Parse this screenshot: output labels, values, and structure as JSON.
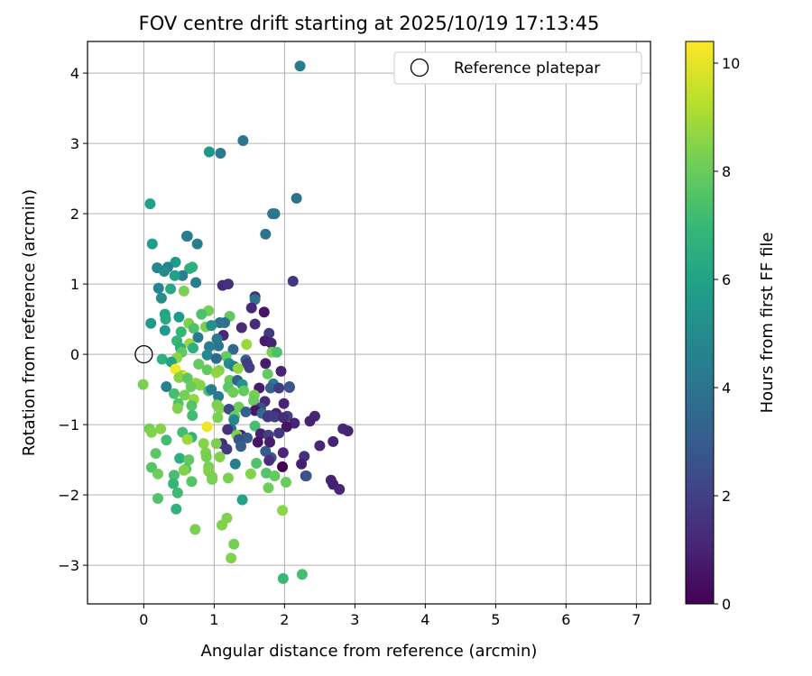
{
  "chart_data": {
    "type": "scatter",
    "title": "FOV centre drift starting at 2025/10/19 17:13:45",
    "xlabel": "Angular distance from reference (arcmin)",
    "ylabel": "Rotation from reference (arcmin)",
    "xlim": [
      -0.8,
      7.2
    ],
    "ylim": [
      -3.55,
      4.45
    ],
    "xticks": [
      0,
      1,
      2,
      3,
      4,
      5,
      6,
      7
    ],
    "yticks": [
      -3,
      -2,
      -1,
      0,
      1,
      2,
      3,
      4
    ],
    "grid": true,
    "legend": {
      "location": "top-right",
      "entries": [
        "Reference platepar"
      ]
    },
    "reference_point": {
      "x": 0,
      "y": 0
    },
    "colorbar": {
      "label": "Hours from first FF file",
      "min": 0,
      "max": 10.4,
      "ticks": [
        0,
        2,
        4,
        6,
        8,
        10
      ],
      "colormap": "viridis"
    },
    "points": [
      {
        "x": 2.22,
        "y": 4.1,
        "c": 4.3
      },
      {
        "x": 1.41,
        "y": 3.04,
        "c": 3.9
      },
      {
        "x": 0.93,
        "y": 2.88,
        "c": 5.5
      },
      {
        "x": 1.09,
        "y": 2.86,
        "c": 4.2
      },
      {
        "x": 2.17,
        "y": 2.22,
        "c": 4.0
      },
      {
        "x": 0.09,
        "y": 2.14,
        "c": 5.9
      },
      {
        "x": 1.83,
        "y": 2.0,
        "c": 4.1
      },
      {
        "x": 1.86,
        "y": 2.0,
        "c": 4.1
      },
      {
        "x": 1.73,
        "y": 1.71,
        "c": 4.0
      },
      {
        "x": 0.61,
        "y": 1.68,
        "c": 4.3
      },
      {
        "x": 0.62,
        "y": 1.68,
        "c": 4.3
      },
      {
        "x": 0.12,
        "y": 1.57,
        "c": 5.8
      },
      {
        "x": 0.76,
        "y": 1.57,
        "c": 4.5
      },
      {
        "x": 0.45,
        "y": 1.31,
        "c": 5.7
      },
      {
        "x": 0.34,
        "y": 1.24,
        "c": 4.6
      },
      {
        "x": 0.19,
        "y": 1.23,
        "c": 4.8
      },
      {
        "x": 0.69,
        "y": 1.24,
        "c": 6.7
      },
      {
        "x": 0.65,
        "y": 1.22,
        "c": 6.5
      },
      {
        "x": 0.29,
        "y": 1.18,
        "c": 5.0
      },
      {
        "x": 0.55,
        "y": 1.12,
        "c": 4.4
      },
      {
        "x": 0.44,
        "y": 1.12,
        "c": 5.9
      },
      {
        "x": 0.74,
        "y": 1.02,
        "c": 4.5
      },
      {
        "x": 2.12,
        "y": 1.04,
        "c": 1.6
      },
      {
        "x": 1.12,
        "y": 0.98,
        "c": 1.2
      },
      {
        "x": 1.2,
        "y": 1.0,
        "c": 1.5
      },
      {
        "x": 0.21,
        "y": 0.94,
        "c": 4.7
      },
      {
        "x": 0.38,
        "y": 0.93,
        "c": 6.2
      },
      {
        "x": 0.57,
        "y": 0.9,
        "c": 8.3
      },
      {
        "x": 1.58,
        "y": 0.82,
        "c": 1.4
      },
      {
        "x": 1.58,
        "y": 0.78,
        "c": 3.8
      },
      {
        "x": 0.25,
        "y": 0.8,
        "c": 5.1
      },
      {
        "x": 1.53,
        "y": 0.66,
        "c": 1.2
      },
      {
        "x": 1.71,
        "y": 0.6,
        "c": 0.6
      },
      {
        "x": 0.92,
        "y": 0.62,
        "c": 8.2
      },
      {
        "x": 0.82,
        "y": 0.57,
        "c": 7.4
      },
      {
        "x": 0.3,
        "y": 0.57,
        "c": 6.0
      },
      {
        "x": 0.5,
        "y": 0.53,
        "c": 5.7
      },
      {
        "x": 1.22,
        "y": 0.54,
        "c": 7.9
      },
      {
        "x": 0.31,
        "y": 0.5,
        "c": 6.3
      },
      {
        "x": 1.15,
        "y": 0.45,
        "c": 4.0
      },
      {
        "x": 1.08,
        "y": 0.45,
        "c": 3.9
      },
      {
        "x": 0.1,
        "y": 0.44,
        "c": 5.6
      },
      {
        "x": 0.64,
        "y": 0.44,
        "c": 8.4
      },
      {
        "x": 1.58,
        "y": 0.43,
        "c": 1.3
      },
      {
        "x": 1.39,
        "y": 0.38,
        "c": 1.3
      },
      {
        "x": 0.88,
        "y": 0.39,
        "c": 8.3
      },
      {
        "x": 0.96,
        "y": 0.41,
        "c": 5.2
      },
      {
        "x": 0.71,
        "y": 0.37,
        "c": 7.5
      },
      {
        "x": 0.3,
        "y": 0.34,
        "c": 5.6
      },
      {
        "x": 0.53,
        "y": 0.32,
        "c": 6.9
      },
      {
        "x": 1.78,
        "y": 0.3,
        "c": 1.7
      },
      {
        "x": 1.13,
        "y": 0.27,
        "c": 1.2
      },
      {
        "x": 0.77,
        "y": 0.24,
        "c": 4.3
      },
      {
        "x": 1.04,
        "y": 0.22,
        "c": 4.2
      },
      {
        "x": 1.72,
        "y": 0.19,
        "c": 0.8
      },
      {
        "x": 0.47,
        "y": 0.19,
        "c": 6.8
      },
      {
        "x": 1.81,
        "y": 0.16,
        "c": 1.0
      },
      {
        "x": 0.65,
        "y": 0.15,
        "c": 8.8
      },
      {
        "x": 1.46,
        "y": 0.14,
        "c": 8.8
      },
      {
        "x": 1.06,
        "y": 0.12,
        "c": 4.1
      },
      {
        "x": 0.93,
        "y": 0.11,
        "c": 4.4
      },
      {
        "x": 1.27,
        "y": 0.07,
        "c": 3.5
      },
      {
        "x": 0.52,
        "y": 0.09,
        "c": 6.5
      },
      {
        "x": 0.7,
        "y": 0.09,
        "c": 6.6
      },
      {
        "x": 1.82,
        "y": 0.03,
        "c": 8.3
      },
      {
        "x": 1.89,
        "y": 0.03,
        "c": 7.4
      },
      {
        "x": 0.54,
        "y": 0.03,
        "c": 7.8
      },
      {
        "x": 0.9,
        "y": -0.01,
        "c": 4.9
      },
      {
        "x": 1.17,
        "y": -0.03,
        "c": 7.9
      },
      {
        "x": 1.03,
        "y": -0.06,
        "c": 3.6
      },
      {
        "x": 0.47,
        "y": -0.05,
        "c": 8.6
      },
      {
        "x": 0.26,
        "y": -0.07,
        "c": 6.6
      },
      {
        "x": 1.45,
        "y": -0.08,
        "c": 3.1
      },
      {
        "x": 0.39,
        "y": -0.11,
        "c": 6.1
      },
      {
        "x": 1.47,
        "y": -0.13,
        "c": 1.8
      },
      {
        "x": 0.78,
        "y": -0.14,
        "c": 7.9
      },
      {
        "x": 1.73,
        "y": -0.13,
        "c": 0.8
      },
      {
        "x": 1.21,
        "y": -0.13,
        "c": 5.1
      },
      {
        "x": 1.28,
        "y": -0.17,
        "c": 4.5
      },
      {
        "x": 1.5,
        "y": -0.19,
        "c": 1.9
      },
      {
        "x": 0.45,
        "y": -0.21,
        "c": 10.3
      },
      {
        "x": 1.34,
        "y": -0.2,
        "c": 8.7
      },
      {
        "x": 0.9,
        "y": -0.22,
        "c": 7.9
      },
      {
        "x": 1.07,
        "y": -0.23,
        "c": 8.4
      },
      {
        "x": 1.95,
        "y": -0.24,
        "c": 1.0
      },
      {
        "x": 1.03,
        "y": -0.26,
        "c": 8.6
      },
      {
        "x": 1.76,
        "y": -0.28,
        "c": 7.9
      },
      {
        "x": 0.55,
        "y": -0.3,
        "c": 8.8
      },
      {
        "x": 0.59,
        "y": -0.32,
        "c": 10.1
      },
      {
        "x": 0.5,
        "y": -0.33,
        "c": 8.5
      },
      {
        "x": 0.62,
        "y": -0.34,
        "c": 7.7
      },
      {
        "x": 1.22,
        "y": -0.37,
        "c": 8.0
      },
      {
        "x": 1.33,
        "y": -0.37,
        "c": 3.2
      },
      {
        "x": 0.74,
        "y": -0.41,
        "c": 8.6
      },
      {
        "x": 1.84,
        "y": -0.42,
        "c": 4.3
      },
      {
        "x": 1.4,
        "y": -0.43,
        "c": 5.4
      },
      {
        "x": 0.32,
        "y": -0.46,
        "c": 4.6
      },
      {
        "x": 0.8,
        "y": -0.44,
        "c": 8.5
      },
      {
        "x": 0.67,
        "y": -0.46,
        "c": 8.0
      },
      {
        "x": -0.01,
        "y": -0.43,
        "c": 8.3
      },
      {
        "x": 1.64,
        "y": -0.48,
        "c": 0.8
      },
      {
        "x": 1.8,
        "y": -0.48,
        "c": 3.2
      },
      {
        "x": 1.2,
        "y": -0.47,
        "c": 7.7
      },
      {
        "x": 1.92,
        "y": -0.48,
        "c": 1.8
      },
      {
        "x": 2.07,
        "y": -0.47,
        "c": 0.6
      },
      {
        "x": 2.07,
        "y": -0.46,
        "c": 2.8
      },
      {
        "x": 0.92,
        "y": -0.52,
        "c": 7.4
      },
      {
        "x": 0.96,
        "y": -0.5,
        "c": 4.4
      },
      {
        "x": 1.42,
        "y": -0.52,
        "c": 7.9
      },
      {
        "x": 1.27,
        "y": -0.54,
        "c": 8.1
      },
      {
        "x": 0.43,
        "y": -0.56,
        "c": 7.3
      },
      {
        "x": 0.58,
        "y": -0.58,
        "c": 8.2
      },
      {
        "x": 1.06,
        "y": -0.6,
        "c": 4.2
      },
      {
        "x": 1.57,
        "y": -0.58,
        "c": 8.2
      },
      {
        "x": 1.56,
        "y": -0.66,
        "c": 8.0
      },
      {
        "x": 0.71,
        "y": -0.64,
        "c": 8.7
      },
      {
        "x": 1.72,
        "y": -0.67,
        "c": 1.3
      },
      {
        "x": 0.49,
        "y": -0.7,
        "c": 7.6
      },
      {
        "x": 1.99,
        "y": -0.7,
        "c": 1.1
      },
      {
        "x": 0.68,
        "y": -0.73,
        "c": 7.6
      },
      {
        "x": 1.04,
        "y": -0.72,
        "c": 8.3
      },
      {
        "x": 1.35,
        "y": -0.75,
        "c": 8.1
      },
      {
        "x": 1.66,
        "y": -0.76,
        "c": 2.3
      },
      {
        "x": 0.48,
        "y": -0.77,
        "c": 8.4
      },
      {
        "x": 1.08,
        "y": -0.77,
        "c": 8.4
      },
      {
        "x": 1.21,
        "y": -0.78,
        "c": 2.4
      },
      {
        "x": 1.58,
        "y": -0.8,
        "c": 0.6
      },
      {
        "x": 1.45,
        "y": -0.82,
        "c": 3.3
      },
      {
        "x": 1.88,
        "y": -0.84,
        "c": 1.0
      },
      {
        "x": 1.68,
        "y": -0.84,
        "c": 3.6
      },
      {
        "x": 0.69,
        "y": -0.87,
        "c": 7.2
      },
      {
        "x": 1.78,
        "y": -0.87,
        "c": 2.1
      },
      {
        "x": 1.29,
        "y": -0.88,
        "c": 8.0
      },
      {
        "x": 2.04,
        "y": -0.88,
        "c": 2.0
      },
      {
        "x": 1.76,
        "y": -0.89,
        "c": 1.7
      },
      {
        "x": 2.43,
        "y": -0.88,
        "c": 1.1
      },
      {
        "x": 1.86,
        "y": -0.89,
        "c": 1.8
      },
      {
        "x": 1.98,
        "y": -0.9,
        "c": 1.3
      },
      {
        "x": 1.05,
        "y": -0.9,
        "c": 8.3
      },
      {
        "x": 1.28,
        "y": -0.93,
        "c": 4.8
      },
      {
        "x": 2.36,
        "y": -0.95,
        "c": 1.0
      },
      {
        "x": 2.14,
        "y": -0.98,
        "c": 1.0
      },
      {
        "x": 0.9,
        "y": -1.03,
        "c": 10.2
      },
      {
        "x": 1.58,
        "y": -1.02,
        "c": 7.3
      },
      {
        "x": 2.03,
        "y": -1.03,
        "c": 0.5
      },
      {
        "x": 1.24,
        "y": -1.06,
        "c": 4.0
      },
      {
        "x": 0.08,
        "y": -1.06,
        "c": 8.2
      },
      {
        "x": 0.24,
        "y": -1.06,
        "c": 8.5
      },
      {
        "x": 1.19,
        "y": -1.07,
        "c": 1.4
      },
      {
        "x": 2.83,
        "y": -1.06,
        "c": 1.2
      },
      {
        "x": 2.9,
        "y": -1.09,
        "c": 1.0
      },
      {
        "x": 0.11,
        "y": -1.11,
        "c": 8.4
      },
      {
        "x": 1.92,
        "y": -1.12,
        "c": 1.6
      },
      {
        "x": 1.66,
        "y": -1.13,
        "c": 0.9
      },
      {
        "x": 0.55,
        "y": -1.11,
        "c": 7.2
      },
      {
        "x": 1.77,
        "y": -1.15,
        "c": 1.9
      },
      {
        "x": 1.38,
        "y": -1.15,
        "c": 1.3
      },
      {
        "x": 0.68,
        "y": -1.18,
        "c": 6.8
      },
      {
        "x": 1.32,
        "y": -1.15,
        "c": 8.3
      },
      {
        "x": 1.47,
        "y": -1.19,
        "c": 3.0
      },
      {
        "x": 1.35,
        "y": -1.21,
        "c": 2.7
      },
      {
        "x": 0.62,
        "y": -1.21,
        "c": 8.8
      },
      {
        "x": 2.69,
        "y": -1.24,
        "c": 1.0
      },
      {
        "x": 0.32,
        "y": -1.22,
        "c": 7.2
      },
      {
        "x": 1.11,
        "y": -1.27,
        "c": 1.4
      },
      {
        "x": 0.85,
        "y": -1.27,
        "c": 8.5
      },
      {
        "x": 1.03,
        "y": -1.27,
        "c": 8.3
      },
      {
        "x": 1.79,
        "y": -1.25,
        "c": 0.8
      },
      {
        "x": 1.62,
        "y": -1.25,
        "c": 0.6
      },
      {
        "x": 2.5,
        "y": -1.3,
        "c": 1.2
      },
      {
        "x": 1.38,
        "y": -1.31,
        "c": 3.1
      },
      {
        "x": 1.18,
        "y": -1.35,
        "c": 1.8
      },
      {
        "x": 1.73,
        "y": -1.38,
        "c": 2.9
      },
      {
        "x": 0.17,
        "y": -1.41,
        "c": 7.7
      },
      {
        "x": 0.88,
        "y": -1.4,
        "c": 8.4
      },
      {
        "x": 1.98,
        "y": -1.4,
        "c": 1.2
      },
      {
        "x": 2.28,
        "y": -1.45,
        "c": 1.5
      },
      {
        "x": 0.89,
        "y": -1.46,
        "c": 8.2
      },
      {
        "x": 1.08,
        "y": -1.46,
        "c": 8.4
      },
      {
        "x": 0.51,
        "y": -1.48,
        "c": 6.5
      },
      {
        "x": 1.81,
        "y": -1.47,
        "c": 2.9
      },
      {
        "x": 0.64,
        "y": -1.5,
        "c": 7.8
      },
      {
        "x": 1.78,
        "y": -1.51,
        "c": 1.4
      },
      {
        "x": 1.6,
        "y": -1.55,
        "c": 7.5
      },
      {
        "x": 1.3,
        "y": -1.56,
        "c": 4.5
      },
      {
        "x": 2.24,
        "y": -1.56,
        "c": 0.9
      },
      {
        "x": 1.97,
        "y": -1.6,
        "c": 0.0
      },
      {
        "x": 0.11,
        "y": -1.61,
        "c": 7.6
      },
      {
        "x": 0.92,
        "y": -1.6,
        "c": 8.3
      },
      {
        "x": 0.6,
        "y": -1.63,
        "c": 7.6
      },
      {
        "x": 0.57,
        "y": -1.65,
        "c": 8.4
      },
      {
        "x": 0.92,
        "y": -1.66,
        "c": 8.4
      },
      {
        "x": 1.74,
        "y": -1.69,
        "c": 7.6
      },
      {
        "x": 1.52,
        "y": -1.7,
        "c": 8.4
      },
      {
        "x": 0.2,
        "y": -1.7,
        "c": 8.1
      },
      {
        "x": 0.43,
        "y": -1.72,
        "c": 7.3
      },
      {
        "x": 1.86,
        "y": -1.73,
        "c": 7.9
      },
      {
        "x": 2.3,
        "y": -1.73,
        "c": 1.0
      },
      {
        "x": 2.31,
        "y": -1.73,
        "c": 2.7
      },
      {
        "x": 0.97,
        "y": -1.74,
        "c": 8.3
      },
      {
        "x": 1.2,
        "y": -1.76,
        "c": 8.3
      },
      {
        "x": 0.97,
        "y": -1.78,
        "c": 8.3
      },
      {
        "x": 2.66,
        "y": -1.79,
        "c": 1.0
      },
      {
        "x": 0.68,
        "y": -1.81,
        "c": 7.6
      },
      {
        "x": 2.02,
        "y": -1.82,
        "c": 8.0
      },
      {
        "x": 0.42,
        "y": -1.84,
        "c": 6.9
      },
      {
        "x": 2.69,
        "y": -1.85,
        "c": 0.9
      },
      {
        "x": 1.77,
        "y": -1.9,
        "c": 8.1
      },
      {
        "x": 2.78,
        "y": -1.92,
        "c": 1.1
      },
      {
        "x": 0.48,
        "y": -1.97,
        "c": 7.1
      },
      {
        "x": 0.2,
        "y": -2.05,
        "c": 7.5
      },
      {
        "x": 1.4,
        "y": -2.07,
        "c": 6.0
      },
      {
        "x": 0.46,
        "y": -2.2,
        "c": 6.7
      },
      {
        "x": 1.97,
        "y": -2.22,
        "c": 8.6
      },
      {
        "x": 1.18,
        "y": -2.33,
        "c": 8.4
      },
      {
        "x": 1.11,
        "y": -2.43,
        "c": 8.4
      },
      {
        "x": 0.73,
        "y": -2.49,
        "c": 8.3
      },
      {
        "x": 1.28,
        "y": -2.7,
        "c": 8.2
      },
      {
        "x": 1.24,
        "y": -2.9,
        "c": 8.4
      },
      {
        "x": 2.25,
        "y": -3.13,
        "c": 7.3
      },
      {
        "x": 1.98,
        "y": -3.19,
        "c": 7.0
      }
    ]
  }
}
